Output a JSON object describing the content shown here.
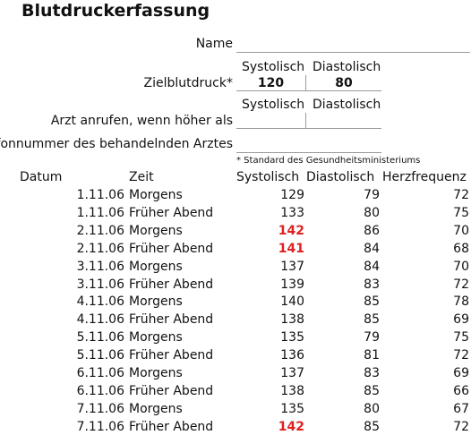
{
  "title": "Blutdruckerfassung",
  "form": {
    "name_label": "Name",
    "name_value": "",
    "target_label": "Zielblutdruck*",
    "target_systolic_header": "Systolisch",
    "target_diastolic_header": "Diastolisch",
    "target_systolic": "120",
    "target_diastolic": "80",
    "call_label": "Arzt anrufen, wenn höher als",
    "call_systolic_header": "Systolisch",
    "call_diastolic_header": "Diastolisch",
    "call_systolic": "",
    "call_diastolic": "",
    "phone_label": "elefonnummer des behandelnden Arztes",
    "phone_value": "",
    "footnote": "* Standard des Gesundheitsministeriums"
  },
  "table": {
    "headers": {
      "date": "Datum",
      "time": "Zeit",
      "systolic": "Systolisch",
      "diastolic": "Diastolisch",
      "heart_rate": "Herzfrequenz"
    },
    "rows": [
      {
        "date": "1.11.06",
        "time": "Morgens",
        "systolic": "129",
        "diastolic": "79",
        "hr": "72",
        "high": false
      },
      {
        "date": "1.11.06",
        "time": "Früher Abend",
        "systolic": "133",
        "diastolic": "80",
        "hr": "75",
        "high": false
      },
      {
        "date": "2.11.06",
        "time": "Morgens",
        "systolic": "142",
        "diastolic": "86",
        "hr": "70",
        "high": true
      },
      {
        "date": "2.11.06",
        "time": "Früher Abend",
        "systolic": "141",
        "diastolic": "84",
        "hr": "68",
        "high": true
      },
      {
        "date": "3.11.06",
        "time": "Morgens",
        "systolic": "137",
        "diastolic": "84",
        "hr": "70",
        "high": false
      },
      {
        "date": "3.11.06",
        "time": "Früher Abend",
        "systolic": "139",
        "diastolic": "83",
        "hr": "72",
        "high": false
      },
      {
        "date": "4.11.06",
        "time": "Morgens",
        "systolic": "140",
        "diastolic": "85",
        "hr": "78",
        "high": false
      },
      {
        "date": "4.11.06",
        "time": "Früher Abend",
        "systolic": "138",
        "diastolic": "85",
        "hr": "69",
        "high": false
      },
      {
        "date": "5.11.06",
        "time": "Morgens",
        "systolic": "135",
        "diastolic": "79",
        "hr": "75",
        "high": false
      },
      {
        "date": "5.11.06",
        "time": "Früher Abend",
        "systolic": "136",
        "diastolic": "81",
        "hr": "72",
        "high": false
      },
      {
        "date": "6.11.06",
        "time": "Morgens",
        "systolic": "137",
        "diastolic": "83",
        "hr": "69",
        "high": false
      },
      {
        "date": "6.11.06",
        "time": "Früher Abend",
        "systolic": "138",
        "diastolic": "85",
        "hr": "66",
        "high": false
      },
      {
        "date": "7.11.06",
        "time": "Morgens",
        "systolic": "135",
        "diastolic": "80",
        "hr": "67",
        "high": false
      },
      {
        "date": "7.11.06",
        "time": "Früher Abend",
        "systolic": "142",
        "diastolic": "85",
        "hr": "72",
        "high": true
      }
    ]
  },
  "colors": {
    "text": "#111111",
    "highlight": "#e02020",
    "rule": "#9a9a9a"
  }
}
